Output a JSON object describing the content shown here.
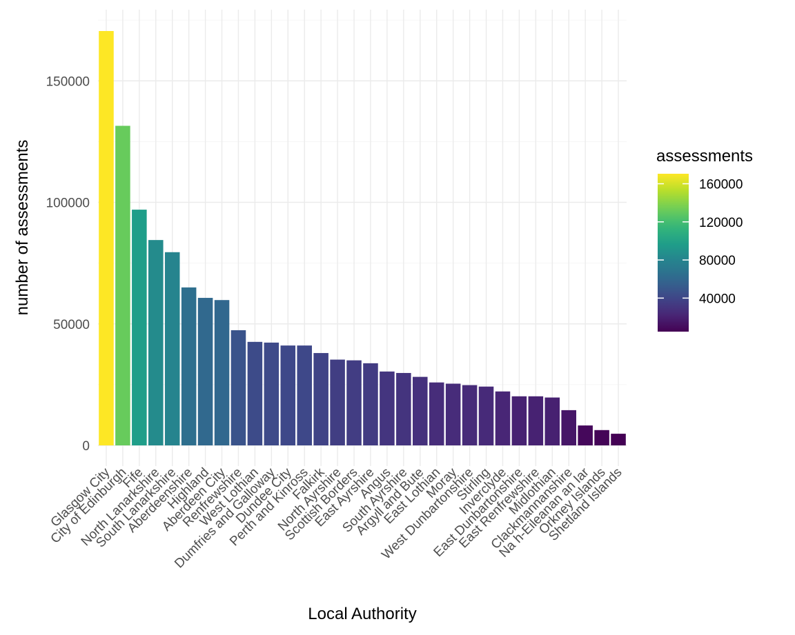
{
  "chart_data": {
    "type": "bar",
    "xlabel": "Local Authority",
    "ylabel": "number of assessments",
    "ylim": [
      0,
      170500
    ],
    "yticks": [
      0,
      50000,
      100000,
      150000
    ],
    "yticks_labels": [
      "0",
      "50000",
      "100000",
      "150000"
    ],
    "grid": true,
    "legend": {
      "title": "assessments",
      "position": "right",
      "type": "colorbar",
      "palette": "viridis",
      "range": [
        4800,
        170500
      ],
      "ticks": [
        40000,
        80000,
        120000,
        160000
      ],
      "tick_labels": [
        "40000",
        "80000",
        "120000",
        "160000"
      ]
    },
    "categories": [
      "Glasgow City",
      "City of Edinburgh",
      "Fife",
      "North Lanarkshire",
      "South Lanarkshire",
      "Aberdeenshire",
      "Highland",
      "Aberdeen City",
      "Renfrewshire",
      "West Lothian",
      "Dumfries and Galloway",
      "Dundee City",
      "Perth and Kinross",
      "Falkirk",
      "North Ayrshire",
      "Scottish Borders",
      "East Ayrshire",
      "Angus",
      "South Ayrshire",
      "Argyll and Bute",
      "East Lothian",
      "Moray",
      "West Dunbartonshire",
      "Stirling",
      "Inverclyde",
      "East Dunbartonshire",
      "East Renfrewshire",
      "Midlothian",
      "Clackmannanshire",
      "Na h-Eileanan an Iar",
      "Orkney Islands",
      "Shetland Islands"
    ],
    "values": [
      170500,
      131500,
      97000,
      84500,
      79500,
      65000,
      60700,
      59800,
      47400,
      42600,
      42300,
      41100,
      41100,
      38000,
      35300,
      35000,
      33800,
      30400,
      29800,
      28200,
      25900,
      25400,
      24800,
      24200,
      22200,
      20200,
      20200,
      19700,
      14500,
      8200,
      6300,
      4800
    ]
  }
}
